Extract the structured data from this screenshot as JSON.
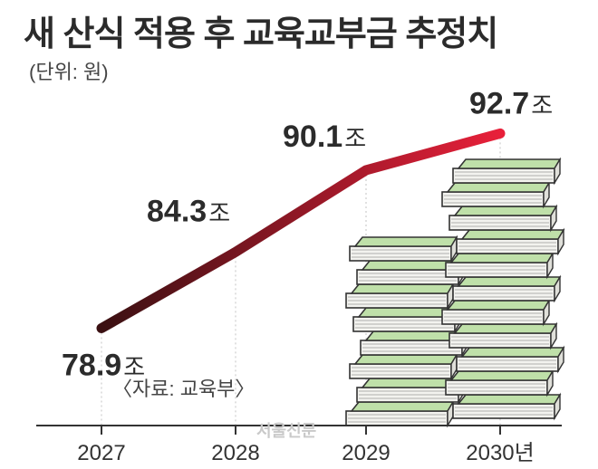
{
  "title": "새 산식 적용 후 교육교부금 추정치",
  "unit_label": "(단위: 원)",
  "source_label": "〈자료: 교육부〉",
  "watermark": "서울신문",
  "chart_data": {
    "type": "line",
    "title": "새 산식 적용 후 교육교부금 추정치",
    "xlabel": "",
    "ylabel": "",
    "x": [
      "2027",
      "2028",
      "2029",
      "2030년"
    ],
    "series": [
      {
        "values": [
          78.9,
          84.3,
          90.1,
          92.7
        ]
      }
    ],
    "value_labels": [
      "78.9",
      "84.3",
      "90.1",
      "92.7"
    ],
    "value_suffix": "조",
    "ylim": [
      72,
      96
    ],
    "grid": false,
    "legend": "none",
    "colors": {
      "line_start": "#3a1012",
      "line_end": "#e8203a",
      "axis": "#333333",
      "gridline": "#d4d4d4"
    }
  }
}
